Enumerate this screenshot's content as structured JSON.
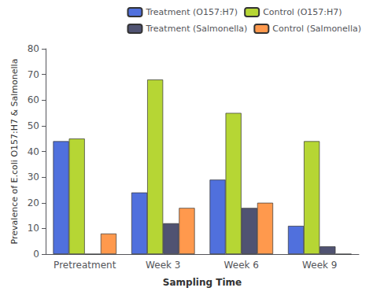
{
  "chart_data": {
    "type": "bar",
    "categories": [
      "Pretreatment",
      "Week 3",
      "Week 6",
      "Week 9"
    ],
    "series": [
      {
        "name": "Treatment (O157:H7)",
        "values": [
          44,
          24,
          29,
          11
        ]
      },
      {
        "name": "Control (O157:H7)",
        "values": [
          45,
          68,
          55,
          44
        ]
      },
      {
        "name": "Treatment (Salmonella)",
        "values": [
          0,
          12,
          18,
          3
        ]
      },
      {
        "name": "Control (Salmonella)",
        "values": [
          8,
          18,
          20,
          0
        ]
      }
    ],
    "xlabel": "Sampling Time",
    "ylabel": "Prevalence of E.coli O157:H7 & Salmonella",
    "ylim": [
      0,
      80
    ],
    "yticks": [
      0,
      10,
      20,
      30,
      40,
      50,
      60,
      70,
      80
    ],
    "grid": false,
    "legend": "upper right"
  }
}
